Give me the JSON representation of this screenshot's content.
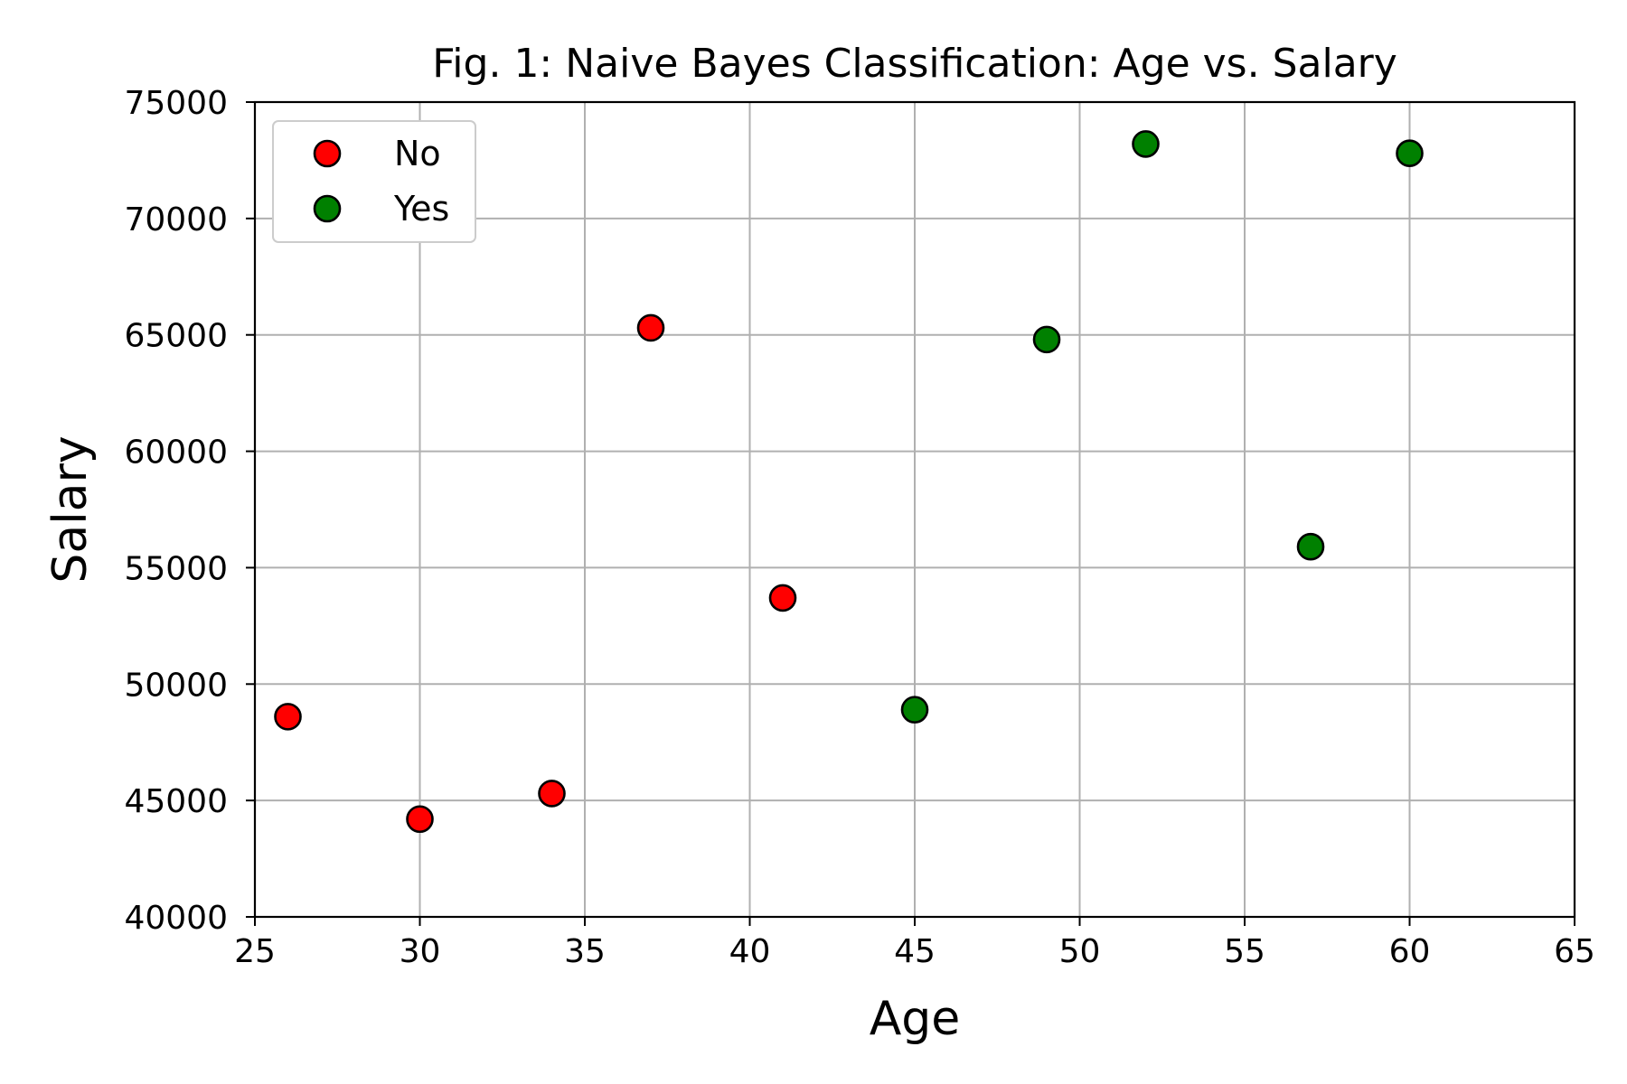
{
  "chart_data": {
    "type": "scatter",
    "title": "Fig. 1: Naive Bayes Classification: Age vs. Salary",
    "xlabel": "Age",
    "ylabel": "Salary",
    "xlim": [
      25,
      65
    ],
    "ylim": [
      40000,
      75000
    ],
    "x_ticks": [
      "25",
      "30",
      "35",
      "40",
      "45",
      "50",
      "55",
      "60",
      "65"
    ],
    "y_ticks": [
      "40000",
      "45000",
      "50000",
      "55000",
      "60000",
      "65000",
      "70000",
      "75000"
    ],
    "grid": true,
    "legend_position": "top-left",
    "series": [
      {
        "name": "No",
        "color": "#ff0000",
        "points": [
          {
            "x": 26,
            "y": 48600
          },
          {
            "x": 30,
            "y": 44200
          },
          {
            "x": 34,
            "y": 45300
          },
          {
            "x": 37,
            "y": 65300
          },
          {
            "x": 41,
            "y": 53700
          }
        ]
      },
      {
        "name": "Yes",
        "color": "#008000",
        "points": [
          {
            "x": 45,
            "y": 48900
          },
          {
            "x": 49,
            "y": 64800
          },
          {
            "x": 52,
            "y": 73200
          },
          {
            "x": 57,
            "y": 55900
          },
          {
            "x": 60,
            "y": 72800
          }
        ]
      }
    ]
  }
}
